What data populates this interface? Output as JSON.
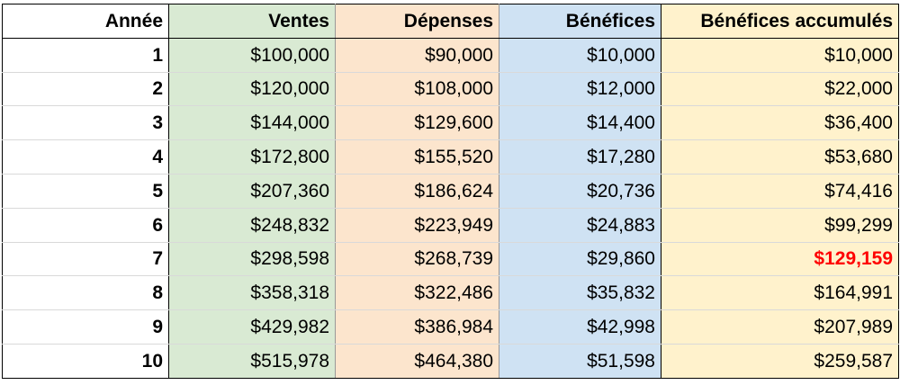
{
  "table": {
    "colors": {
      "annee": "#ffffff",
      "ventes": "#d9ead3",
      "depenses": "#fce5cd",
      "benefices": "#cfe2f3",
      "benefices_accumules": "#fff2cc",
      "highlight_text": "#ff0000"
    },
    "headers": {
      "annee": "Année",
      "ventes": "Ventes",
      "depenses": "Dépenses",
      "benefices": "Bénéfices",
      "benefices_accumules": "Bénéfices accumulés"
    },
    "rows": [
      {
        "annee": "1",
        "ventes": "$100,000",
        "depenses": "$90,000",
        "benefices": "$10,000",
        "accum": "$10,000"
      },
      {
        "annee": "2",
        "ventes": "$120,000",
        "depenses": "$108,000",
        "benefices": "$12,000",
        "accum": "$22,000"
      },
      {
        "annee": "3",
        "ventes": "$144,000",
        "depenses": "$129,600",
        "benefices": "$14,400",
        "accum": "$36,400"
      },
      {
        "annee": "4",
        "ventes": "$172,800",
        "depenses": "$155,520",
        "benefices": "$17,280",
        "accum": "$53,680"
      },
      {
        "annee": "5",
        "ventes": "$207,360",
        "depenses": "$186,624",
        "benefices": "$20,736",
        "accum": "$74,416"
      },
      {
        "annee": "6",
        "ventes": "$248,832",
        "depenses": "$223,949",
        "benefices": "$24,883",
        "accum": "$99,299"
      },
      {
        "annee": "7",
        "ventes": "$298,598",
        "depenses": "$268,739",
        "benefices": "$29,860",
        "accum": "$129,159"
      },
      {
        "annee": "8",
        "ventes": "$358,318",
        "depenses": "$322,486",
        "benefices": "$35,832",
        "accum": "$164,991"
      },
      {
        "annee": "9",
        "ventes": "$429,982",
        "depenses": "$386,984",
        "benefices": "$42,998",
        "accum": "$207,989"
      },
      {
        "annee": "10",
        "ventes": "$515,978",
        "depenses": "$464,380",
        "benefices": "$51,598",
        "accum": "$259,587"
      }
    ],
    "highlighted_cell": {
      "row": 7,
      "column": "accum"
    }
  }
}
